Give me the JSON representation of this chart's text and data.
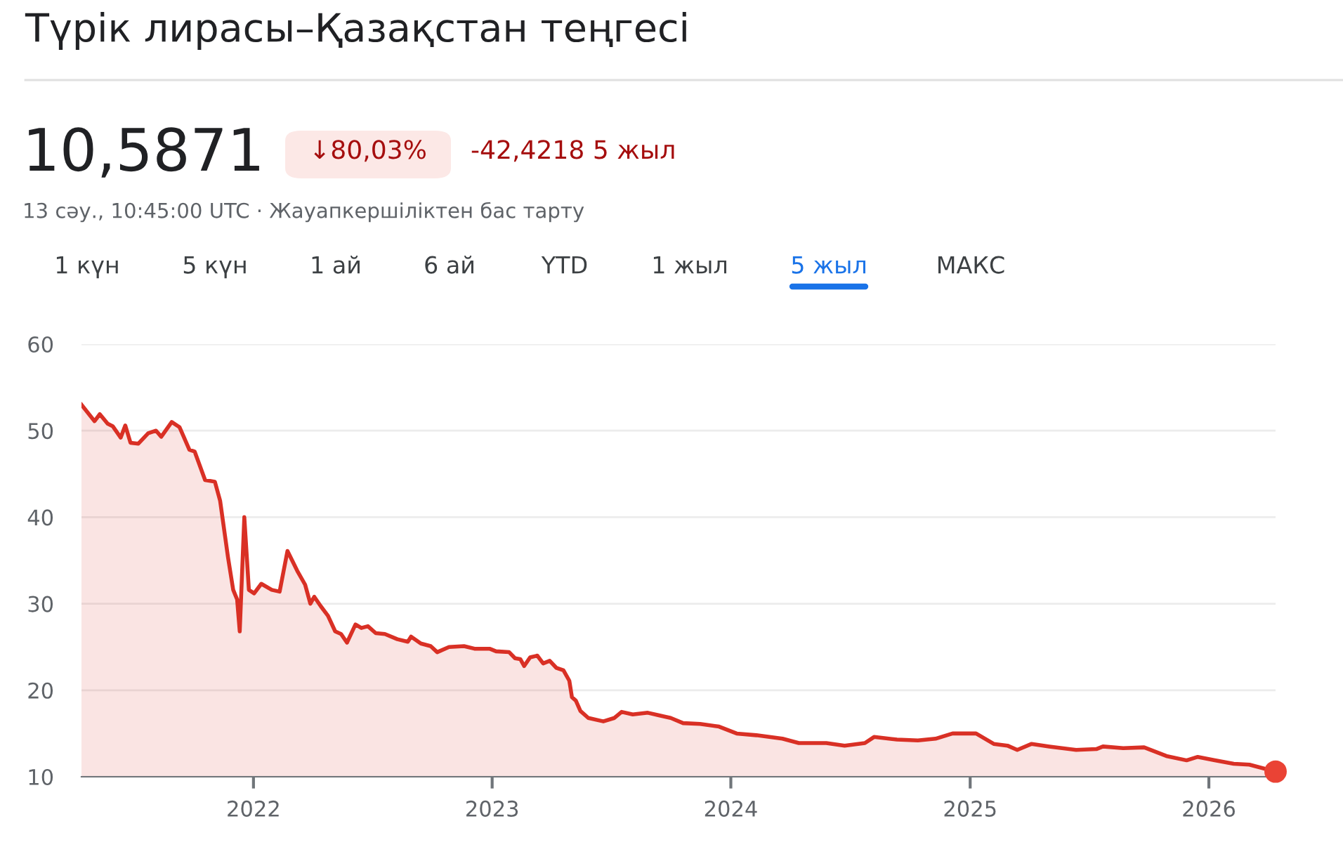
{
  "chart_data": {
    "type": "area",
    "title": "Түрік лирасы–Қазақстан теңгесі",
    "subtitle": "10,5871",
    "annotations": [
      "↓80,03%",
      "-42,4218 5 жыл",
      "13 сәу., 10:45:00 UTC · Жауапкершіліктен бас тарту",
      "1 күн",
      "5 күн",
      "1 ай",
      "6 ай",
      "YTD",
      "1 жыл",
      "5 жыл",
      "МАКС"
    ],
    "xlim": [
      "2021-04-13",
      "2026-04-13"
    ],
    "ylim": [
      10,
      60
    ],
    "xticks": [
      {
        "value": "2022-01-01",
        "label": "2022"
      },
      {
        "value": "2023-01-01",
        "label": "2023"
      },
      {
        "value": "2024-01-01",
        "label": "2024"
      },
      {
        "value": "2025-01-01",
        "label": "2025"
      },
      {
        "value": "2026-01-01",
        "label": "2026"
      }
    ],
    "yticks": [
      10,
      20,
      30,
      40,
      50,
      60
    ],
    "grid": "y",
    "legend": false,
    "series": [
      {
        "color": "#d93025",
        "x": [
          "2021-04-13",
          "2021-05-03",
          "2021-05-11",
          "2021-05-23",
          "2021-05-31",
          "2021-06-12",
          "2021-06-19",
          "2021-06-27",
          "2021-07-09",
          "2021-07-24",
          "2021-08-05",
          "2021-08-13",
          "2021-08-29",
          "2021-09-10",
          "2021-09-25",
          "2021-10-03",
          "2021-10-19",
          "2021-11-03",
          "2021-11-11",
          "2021-11-23",
          "2021-12-01",
          "2021-12-07",
          "2021-12-11",
          "2021-12-18",
          "2021-12-25",
          "2022-01-02",
          "2022-01-13",
          "2022-01-29",
          "2022-02-10",
          "2022-02-22",
          "2022-03-09",
          "2022-03-21",
          "2022-03-29",
          "2022-04-04",
          "2022-04-14",
          "2022-04-25",
          "2022-05-06",
          "2022-05-15",
          "2022-05-24",
          "2022-06-06",
          "2022-06-15",
          "2022-06-25",
          "2022-07-07",
          "2022-07-21",
          "2022-08-09",
          "2022-08-25",
          "2022-08-30",
          "2022-09-14",
          "2022-09-29",
          "2022-10-09",
          "2022-10-27",
          "2022-11-19",
          "2022-12-05",
          "2022-12-28",
          "2023-01-07",
          "2023-01-27",
          "2023-02-05",
          "2023-02-13",
          "2023-02-19",
          "2023-02-28",
          "2023-03-11",
          "2023-03-20",
          "2023-03-30",
          "2023-04-09",
          "2023-04-20",
          "2023-04-29",
          "2023-05-03",
          "2023-05-09",
          "2023-05-16",
          "2023-05-28",
          "2023-06-20",
          "2023-07-07",
          "2023-07-18",
          "2023-08-04",
          "2023-08-27",
          "2023-09-13",
          "2023-10-01",
          "2023-10-20",
          "2023-11-15",
          "2023-12-14",
          "2024-01-10",
          "2024-02-09",
          "2024-03-20",
          "2024-04-14",
          "2024-05-26",
          "2024-06-23",
          "2024-07-24",
          "2024-08-07",
          "2024-09-11",
          "2024-10-13",
          "2024-11-09",
          "2024-12-05",
          "2025-01-10",
          "2025-02-06",
          "2025-02-27",
          "2025-03-14",
          "2025-04-05",
          "2025-05-02",
          "2025-06-12",
          "2025-07-13",
          "2025-07-23",
          "2025-08-23",
          "2025-09-24",
          "2025-10-28",
          "2025-11-28",
          "2025-12-15",
          "2026-01-10",
          "2026-02-08",
          "2026-03-04",
          "2026-04-13"
        ],
        "values": [
          53.0,
          51.1,
          51.9,
          50.8,
          50.5,
          49.2,
          50.6,
          48.6,
          48.5,
          49.7,
          50.0,
          49.3,
          51.0,
          50.4,
          47.8,
          47.6,
          44.3,
          44.1,
          41.9,
          35.4,
          31.6,
          30.5,
          26.8,
          40.0,
          31.6,
          31.2,
          32.3,
          31.6,
          31.4,
          36.1,
          33.8,
          32.2,
          30.0,
          30.8,
          29.7,
          28.6,
          26.8,
          26.5,
          25.5,
          27.6,
          27.2,
          27.4,
          26.6,
          26.5,
          25.9,
          25.6,
          26.2,
          25.4,
          25.1,
          24.4,
          25.0,
          25.1,
          24.8,
          24.8,
          24.5,
          24.4,
          23.7,
          23.6,
          22.8,
          23.8,
          24.0,
          23.1,
          23.4,
          22.6,
          22.3,
          21.1,
          19.2,
          18.8,
          17.6,
          16.8,
          16.4,
          16.8,
          17.5,
          17.2,
          17.4,
          17.1,
          16.8,
          16.2,
          16.1,
          15.8,
          15.0,
          14.8,
          14.4,
          13.9,
          13.9,
          13.6,
          13.9,
          14.6,
          14.3,
          14.2,
          14.4,
          15.0,
          15.0,
          13.8,
          13.6,
          13.1,
          13.8,
          13.5,
          13.1,
          13.2,
          13.5,
          13.3,
          13.4,
          12.4,
          11.9,
          12.3,
          11.9,
          11.5,
          11.4,
          10.6
        ]
      },
      {
        "type": "scatter",
        "color": "#ea4335",
        "x": [
          "2026-04-13"
        ],
        "values": [
          10.6
        ]
      }
    ]
  }
}
